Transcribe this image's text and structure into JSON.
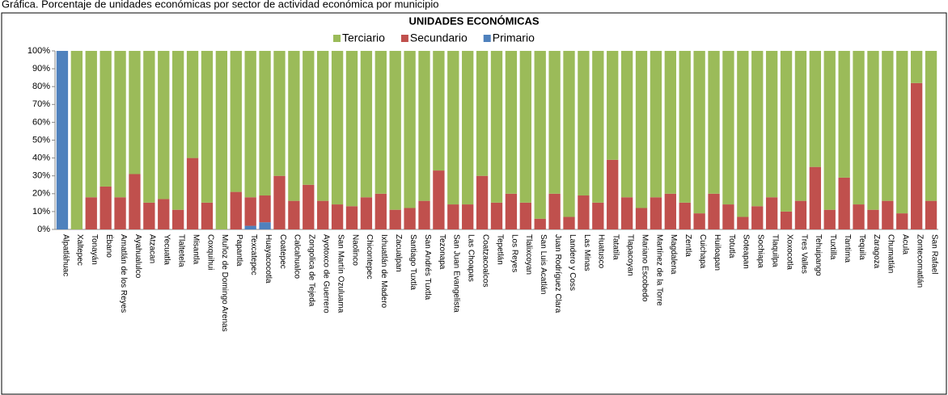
{
  "chart_data": {
    "type": "stacked_bar",
    "caption": "Gráfica. Porcentaje de unidades económicas por sector de actividad económica por municipio",
    "title": "UNIDADES ECONÓMICAS",
    "categories": [
      "Alpatláhuac",
      "Xaltepec",
      "Tonayán",
      "Ébano",
      "Amatlán de los Reyes",
      "Ayahualulco",
      "Atzacan",
      "Yecuatla",
      "Tlaltetela",
      "Misantla",
      "Coxquihui",
      "Muñoz de Domingo Arenas",
      "Papantla",
      "Texcatepec",
      "Huayacocotla",
      "Coatepec",
      "Calcahualco",
      "Zongolica de Tejeda",
      "Ayotoxco de Guerrero",
      "San Martín Ozuluama",
      "Naolinco",
      "Chicontepec",
      "Ixhuatlán de Madero",
      "Zacualpan",
      "Santiago Tuxtla",
      "San Andrés Tuxtla",
      "Tezonapa",
      "San Juan Evangelista",
      "Las Choapas",
      "Coatzacoalcos",
      "Tepetlán",
      "Los Reyes",
      "Tlalixcoyan",
      "San Luis Acatlán",
      "Juan Rodríguez Clara",
      "Landero y Coss",
      "Las Minas",
      "Huatusco",
      "Tatatila",
      "Tlapacoyan",
      "Mariano Escobedo",
      "Martínez de la Torre",
      "Magdalena",
      "Zentla",
      "Cuichapa",
      "Huiloapan",
      "Totutla",
      "Soteapan",
      "Sochiapa",
      "Tlaquilpa",
      "Xoxocotla",
      "Tres Valles",
      "Tehuipango",
      "Tuxtilla",
      "Tantima",
      "Tequila",
      "Zaragoza",
      "Chumatlán",
      "Acula",
      "Zontecomatlán",
      "San Rafael"
    ],
    "series": [
      {
        "name": "Terciario",
        "color": "#9bbb59",
        "values": [
          0,
          100,
          82,
          76,
          82,
          69,
          85,
          83,
          89,
          60,
          85,
          100,
          79,
          82,
          81,
          70,
          84,
          75,
          84,
          86,
          87,
          82,
          80,
          89,
          88,
          84,
          67,
          86,
          86,
          70,
          85,
          80,
          85,
          94,
          80,
          93,
          81,
          85,
          61,
          82,
          88,
          82,
          80,
          85,
          91,
          80,
          86,
          93,
          87,
          82,
          90,
          84,
          65,
          89,
          71,
          86,
          89,
          84,
          91,
          18,
          84
        ]
      },
      {
        "name": "Secundario",
        "color": "#c0504d",
        "values": [
          0,
          0,
          18,
          24,
          18,
          31,
          15,
          17,
          11,
          40,
          15,
          0,
          21,
          16,
          15,
          30,
          16,
          25,
          16,
          14,
          13,
          18,
          20,
          11,
          12,
          16,
          33,
          14,
          14,
          30,
          15,
          20,
          15,
          6,
          20,
          7,
          19,
          15,
          39,
          18,
          12,
          18,
          20,
          15,
          9,
          20,
          14,
          7,
          13,
          18,
          10,
          16,
          35,
          11,
          29,
          14,
          11,
          16,
          9,
          82,
          16
        ]
      },
      {
        "name": "Primario",
        "color": "#4f81bd",
        "values": [
          100,
          0,
          0,
          0,
          0,
          0,
          0,
          0,
          0,
          0,
          0,
          0,
          0,
          2,
          4,
          0,
          0,
          0,
          0,
          0,
          0,
          0,
          0,
          0,
          0,
          0,
          0,
          0,
          0,
          0,
          0,
          0,
          0,
          0,
          0,
          0,
          0,
          0,
          0,
          0,
          0,
          0,
          0,
          0,
          0,
          0,
          0,
          0,
          0,
          0,
          0,
          0,
          0,
          0,
          0,
          0,
          0,
          0,
          0,
          0,
          0
        ]
      }
    ],
    "ylim": [
      0,
      100
    ],
    "yticks": [
      {
        "value": 0,
        "label": "0%"
      },
      {
        "value": 10,
        "label": "10%"
      },
      {
        "value": 20,
        "label": "20%"
      },
      {
        "value": 30,
        "label": "30%"
      },
      {
        "value": 40,
        "label": "40%"
      },
      {
        "value": 50,
        "label": "50%"
      },
      {
        "value": 60,
        "label": "60%"
      },
      {
        "value": 70,
        "label": "70%"
      },
      {
        "value": 80,
        "label": "80%"
      },
      {
        "value": 90,
        "label": "90%"
      },
      {
        "value": 100,
        "label": "100%"
      }
    ],
    "legend": "top"
  }
}
